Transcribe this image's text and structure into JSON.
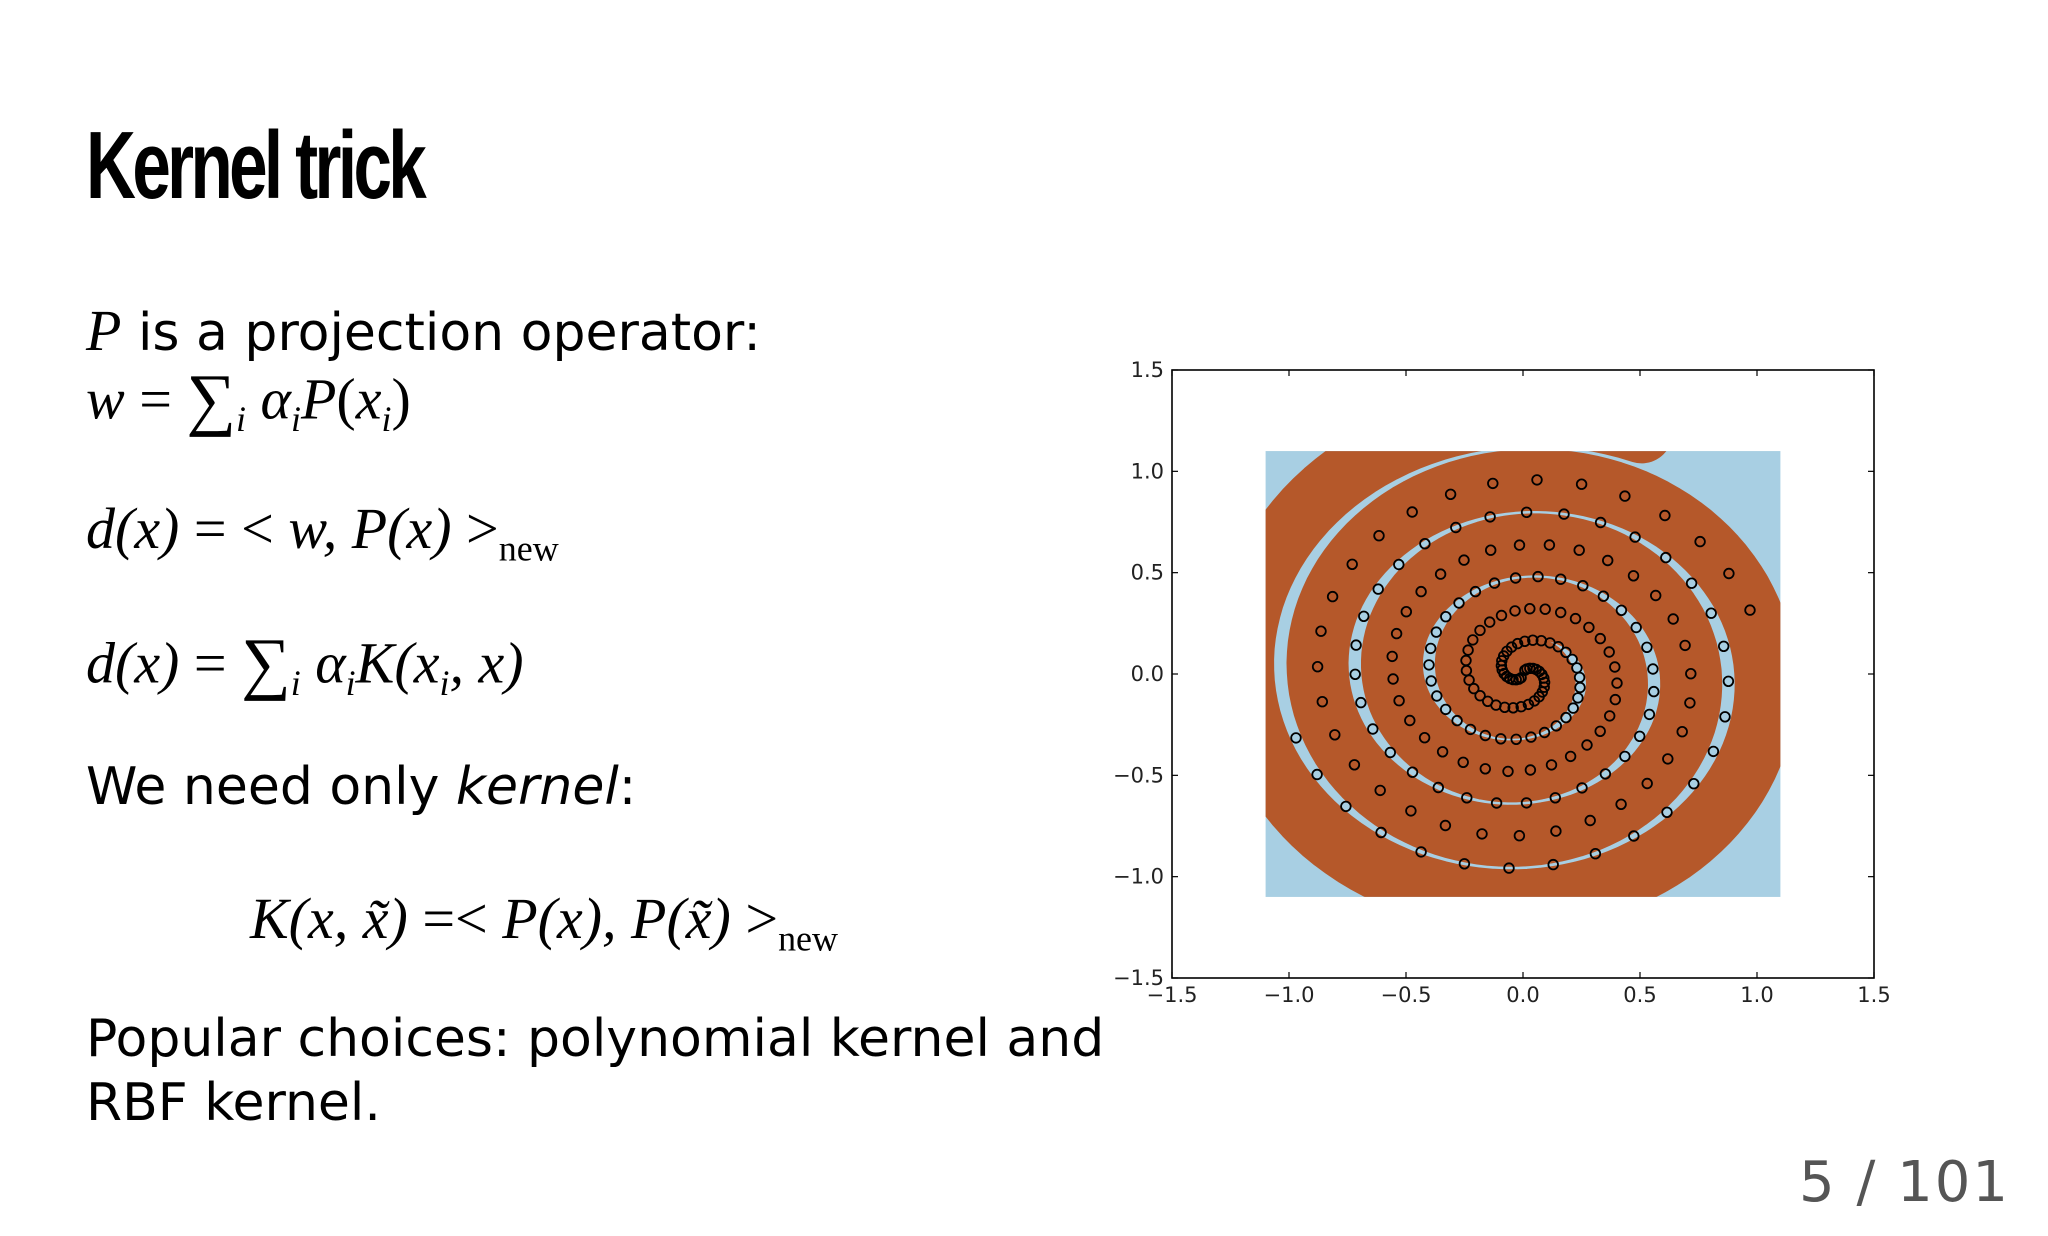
{
  "slide": {
    "title": "Kernel trick",
    "page_number": "5 / 101"
  },
  "text": {
    "p_symbol": "P",
    "p_desc": " is a projection operator:",
    "w_lhs": "w",
    "eq": " = ",
    "sum": "∑",
    "sum_sub": "i",
    "alpha": "α",
    "P": "P",
    "x": "x",
    "d_of_x": "d(x)",
    "lt": " < ",
    "gt": " >",
    "new_sub": "new",
    "K": "K",
    "need_prefix": "We need only ",
    "need_kernel": "kernel",
    "need_suffix": ":",
    "kernel_lhs": "K(x, x̃)",
    "kernel_eq": " =< ",
    "kernel_rhs": "P(x), P(x̃)",
    "popular_line1": "Popular choices: polynomial kernel and",
    "popular_line2": "RBF kernel."
  },
  "chart_data": {
    "type": "scatter",
    "title": "",
    "xlabel": "",
    "ylabel": "",
    "xlim": [
      -1.5,
      1.5
    ],
    "ylim": [
      -1.5,
      1.5
    ],
    "xticks": [
      "−1.5",
      "−1.0",
      "−0.5",
      "0.0",
      "0.5",
      "1.0",
      "1.5"
    ],
    "yticks": [
      "1.5",
      "1.0",
      "0.5",
      "0.0",
      "−0.5",
      "−1.0",
      "−1.5"
    ],
    "decision_region": {
      "x_range": [
        -1.1,
        1.1
      ],
      "y_range": [
        -1.1,
        1.1
      ],
      "colors": {
        "class_a": "#b5582a",
        "class_b": "#a8cfe3"
      }
    },
    "series": [
      {
        "description": "double spiral training points",
        "marker": "open circle",
        "color": "#000000",
        "spiral": {
          "turns": 3.2,
          "r_max": 1.02,
          "arms": 2
        }
      }
    ],
    "grid": false,
    "legend": "none"
  }
}
